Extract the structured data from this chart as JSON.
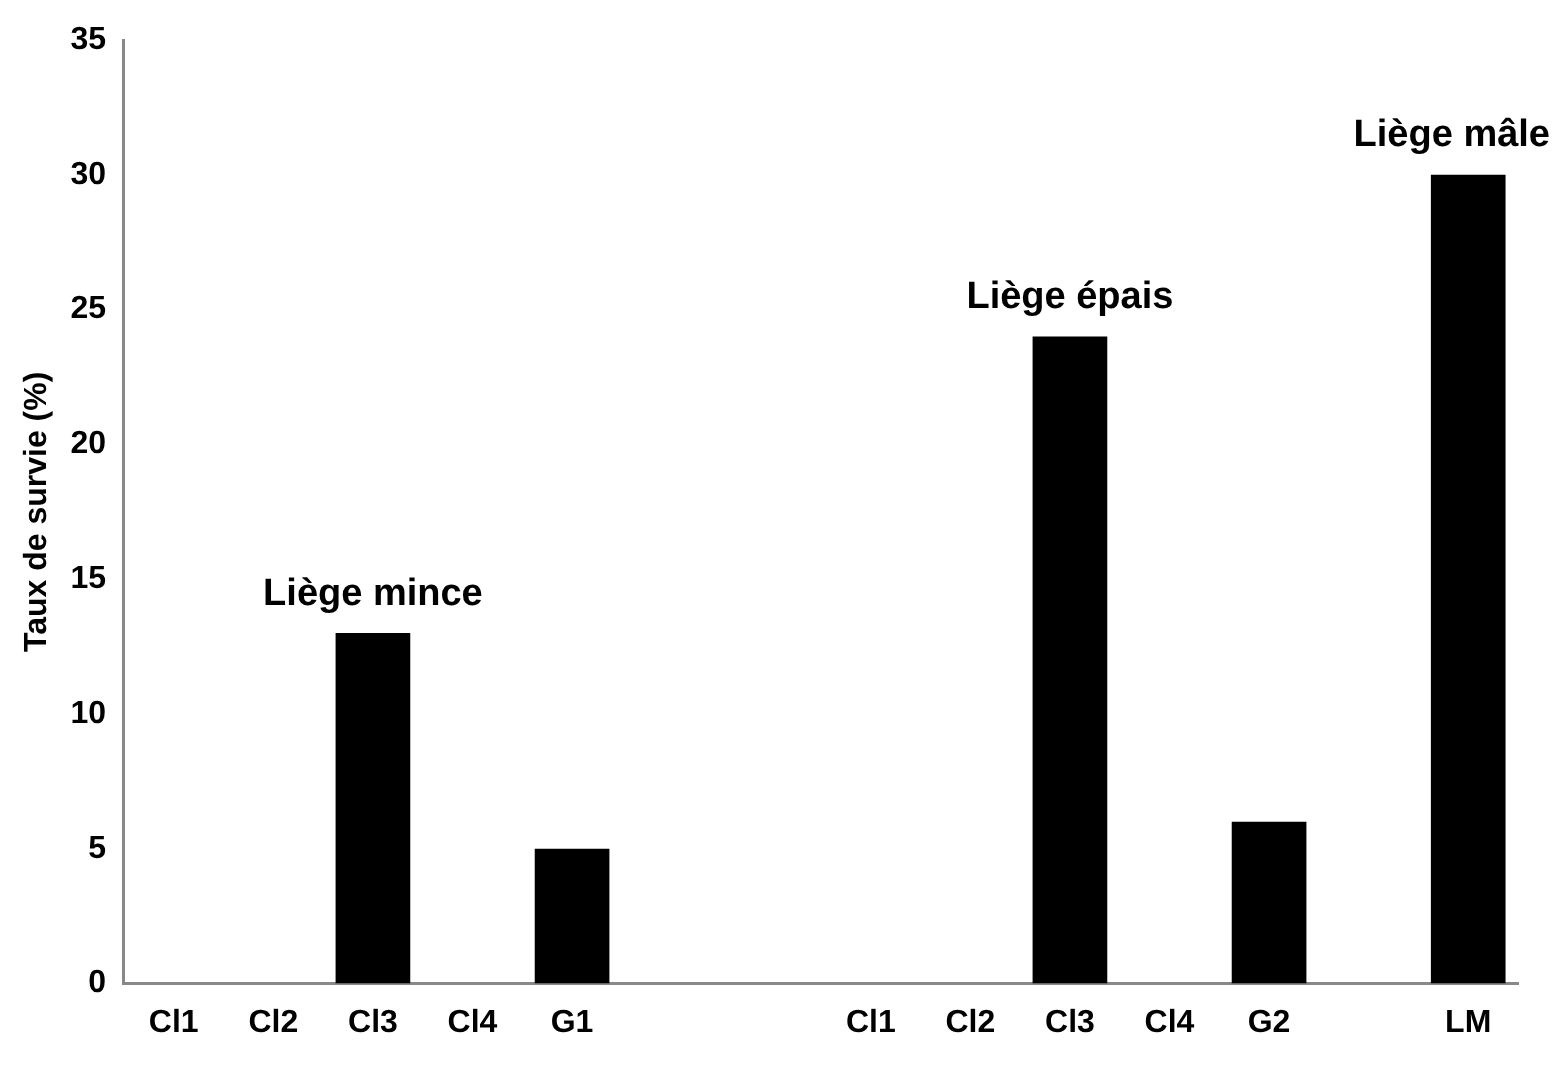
{
  "chart_data": {
    "type": "bar",
    "ylabel": "Taux de survie (%)",
    "categories": [
      "Cl1",
      "Cl2",
      "Cl3",
      "Cl4",
      "G1",
      null,
      null,
      "Cl1",
      "Cl2",
      "Cl3",
      "Cl4",
      "G2",
      null,
      "LM"
    ],
    "values": [
      0,
      0,
      13,
      0,
      5,
      null,
      null,
      0,
      0,
      24,
      0,
      6,
      null,
      30
    ],
    "color": "#000000",
    "ylim": [
      0,
      35
    ],
    "yticks": [
      0,
      5,
      10,
      15,
      20,
      25,
      30,
      35
    ],
    "grid": false,
    "legend": false,
    "annotations": [
      "Liège mince",
      "Liège épais",
      "Liège mâle"
    ]
  }
}
